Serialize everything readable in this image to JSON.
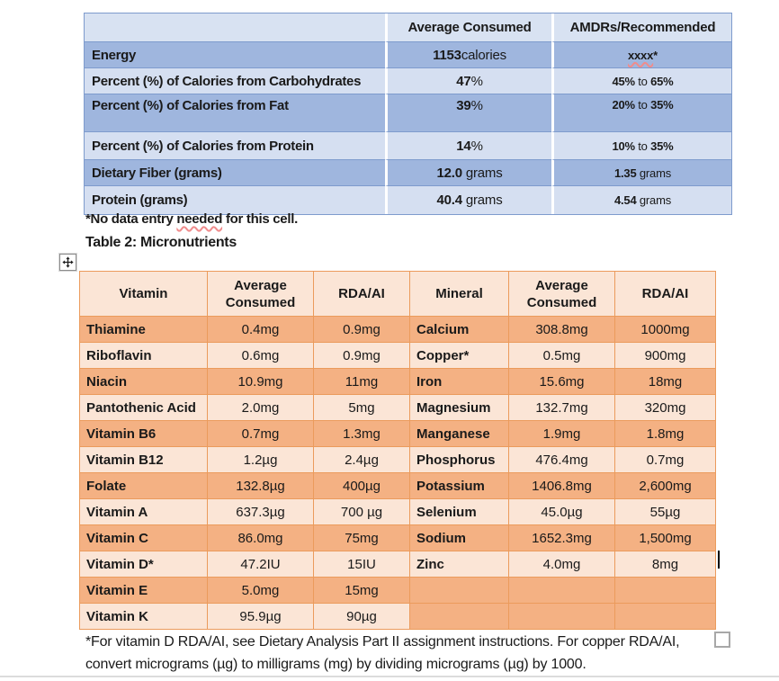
{
  "table1": {
    "headers": [
      "",
      "Average Consumed",
      "AMDRs/Recommended"
    ],
    "rows": [
      {
        "label": "Energy",
        "avg": [
          {
            "t": "1153",
            "b": 1
          },
          {
            "t": "calories"
          }
        ],
        "amdr": [
          {
            "t": "xxxx",
            "b": 1,
            "sq": 1
          },
          {
            "t": "*",
            "b": 1
          }
        ]
      },
      {
        "label": "Percent (%) of Calories from Carbohydrates",
        "avg": [
          {
            "t": "47",
            "b": 1
          },
          {
            "t": "%"
          }
        ],
        "amdr": [
          {
            "t": "45%",
            "b": 1
          },
          {
            "t": " to "
          },
          {
            "t": "65%",
            "b": 1
          }
        ]
      },
      {
        "label": "Percent (%) of Calories from Fat",
        "avg": [
          {
            "t": "39",
            "b": 1
          },
          {
            "t": "%"
          }
        ],
        "amdr": [
          {
            "t": "20%",
            "b": 1
          },
          {
            "t": " to "
          },
          {
            "t": "35%",
            "b": 1
          }
        ]
      },
      {
        "label": "Percent (%) of Calories from Protein",
        "avg": [
          {
            "t": "14",
            "b": 1
          },
          {
            "t": "%"
          }
        ],
        "amdr": [
          {
            "t": "10%",
            "b": 1
          },
          {
            "t": " to "
          },
          {
            "t": "35%",
            "b": 1
          }
        ]
      },
      {
        "label": "Dietary Fiber (grams)",
        "avg": [
          {
            "t": "12.0",
            "b": 1
          },
          {
            "t": " grams"
          }
        ],
        "amdr": [
          {
            "t": "1.35",
            "b": 1
          },
          {
            "t": " grams"
          }
        ]
      },
      {
        "label": "Protein (grams)",
        "avg": [
          {
            "t": "40.4",
            "b": 1
          },
          {
            "t": " grams"
          }
        ],
        "amdr": [
          {
            "t": "4.54",
            "b": 1
          },
          {
            "t": " grams"
          }
        ]
      }
    ],
    "footnote_parts": [
      {
        "t": "*No data entry ",
        "b": 1
      },
      {
        "t": "needed",
        "b": 1,
        "sq": 1
      },
      {
        "t": " for this cell.",
        "b": 1
      }
    ]
  },
  "table2": {
    "title": "Table 2: Micronutrients",
    "headers": [
      "Vitamin",
      "Average Consumed",
      "RDA/AI",
      "Mineral",
      "Average Consumed",
      "RDA/AI"
    ],
    "rows": [
      [
        "Thiamine",
        "0.4mg",
        "0.9mg",
        "Calcium",
        "308.8mg",
        "1000mg"
      ],
      [
        "Riboflavin",
        "0.6mg",
        "0.9mg",
        "Copper*",
        "0.5mg",
        "900mg"
      ],
      [
        "Niacin",
        "10.9mg",
        "11mg",
        "Iron",
        "15.6mg",
        "18mg"
      ],
      [
        "Pantothenic Acid",
        "2.0mg",
        "5mg",
        "Magnesium",
        "132.7mg",
        "320mg"
      ],
      [
        "Vitamin B6",
        "0.7mg",
        "1.3mg",
        "Manganese",
        "1.9mg",
        "1.8mg"
      ],
      [
        "Vitamin B12",
        "1.2µg",
        "2.4µg",
        "Phosphorus",
        "476.4mg",
        "0.7mg"
      ],
      [
        "Folate",
        "132.8µg",
        "400µg",
        "Potassium",
        "1406.8mg",
        "2,600mg"
      ],
      [
        "Vitamin A",
        "637.3µg",
        "700 µg",
        "Selenium",
        "45.0µg",
        "55µg"
      ],
      [
        "Vitamin C",
        "86.0mg",
        "75mg",
        "Sodium",
        "1652.3mg",
        "1,500mg"
      ],
      [
        "Vitamin D*",
        "47.2IU",
        "15IU",
        "Zinc",
        "4.0mg",
        "8mg"
      ],
      [
        "Vitamin E",
        "5.0mg",
        "15mg",
        "",
        "",
        ""
      ],
      [
        "Vitamin K",
        "95.9µg",
        "90µg",
        "",
        "",
        ""
      ]
    ],
    "footnote_line1": "*For vitamin D RDA/AI, see Dietary Analysis Part II assignment instructions. For copper RDA/AI,",
    "footnote_line2": "convert micrograms (µg) to milligrams (mg) by dividing micrograms (µg) by 1000."
  },
  "icons": {
    "move_handle": "four-arrow-move",
    "resize_handle": "empty-square",
    "text_caret": "vertical-bar"
  },
  "colors": {
    "table1_dark": "#9fb6de",
    "table1_light": "#d5dff1",
    "table1_header": "#d8e2f2",
    "table1_border": "#7e9bcd",
    "table2_dark": "#f4b183",
    "table2_light": "#fbe5d6",
    "table2_border": "#eb9b5c",
    "spellcheck_squiggle": "#f08c8c"
  }
}
